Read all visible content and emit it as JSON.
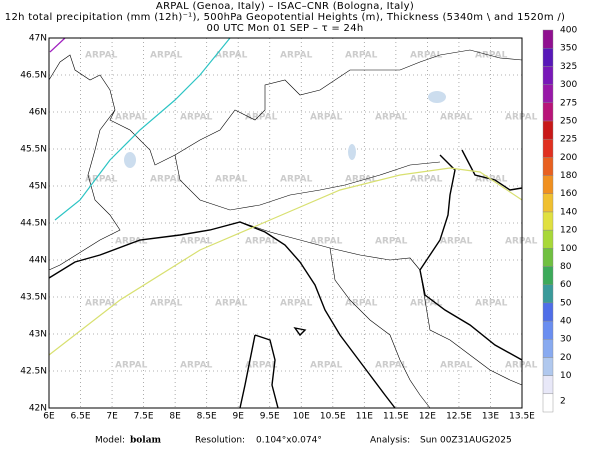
{
  "header": {
    "lines": [
      "ARPAL (Genoa, Italy)  –  ISAC–CNR (Bologna, Italy)",
      "12h total precipitation (mm (12h)⁻¹), 500hPa Geopotential Heights (m), Thickness (5340m \\ and 1520m /)",
      "00 UTC Mon 01 SEP  –  τ = 24h"
    ]
  },
  "map": {
    "lon_labels": [
      "6E",
      "6.5E",
      "7E",
      "7.5E",
      "8E",
      "8.5E",
      "9E",
      "9.5E",
      "10E",
      "10.5E",
      "11E",
      "11.5E",
      "12E",
      "12.5E",
      "13E",
      "13.5E"
    ],
    "lat_labels": [
      "42N",
      "42.5N",
      "43N",
      "43.5N",
      "44N",
      "44.5N",
      "45N",
      "45.5N",
      "46N",
      "46.5N",
      "47N"
    ],
    "watermark": "ARPAL"
  },
  "colorbar": {
    "labels": [
      "2",
      "10",
      "20",
      "30",
      "40",
      "50",
      "60",
      "80",
      "100",
      "120",
      "140",
      "160",
      "180",
      "200",
      "225",
      "250",
      "275",
      "300",
      "325",
      "350",
      "400"
    ],
    "colors": [
      "#ffffff",
      "#e8e8f8",
      "#b0c8ee",
      "#88aaf0",
      "#6a8ef0",
      "#4f6ee8",
      "#3a9a9a",
      "#3caa5a",
      "#70c040",
      "#a8d838",
      "#e0e040",
      "#f0c030",
      "#f09020",
      "#e86020",
      "#e03020",
      "#c81818",
      "#b81478",
      "#9818a8",
      "#7818b8",
      "#5818b8",
      "#901090"
    ]
  },
  "footer": {
    "model_label": "Model:",
    "model": "bolam",
    "res_label": "Resolution:",
    "res": "0.104°x0.074°",
    "analysis_label": "Analysis:",
    "analysis": "Sun  00Z31AUG2025"
  }
}
